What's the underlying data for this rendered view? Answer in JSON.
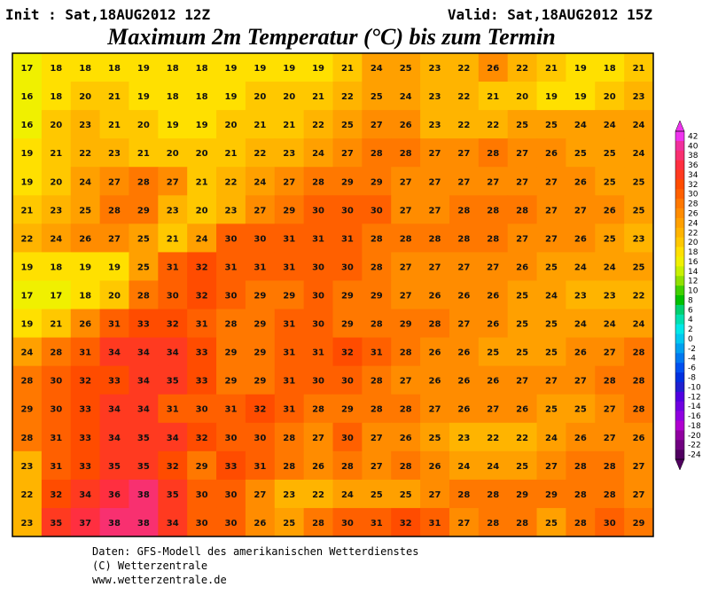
{
  "header": {
    "init": "Init : Sat,18AUG2012 12Z",
    "valid": "Valid: Sat,18AUG2012 15Z",
    "title": "Maximum 2m Temperatur (°C) bis zum Termin"
  },
  "map": {
    "grid": [
      [
        17,
        18,
        18,
        18,
        19,
        18,
        18,
        19,
        19,
        19,
        19,
        21,
        24,
        25,
        23,
        22,
        26,
        22,
        21,
        19,
        18,
        21
      ],
      [
        16,
        18,
        20,
        21,
        19,
        18,
        18,
        19,
        20,
        20,
        21,
        22,
        25,
        24,
        23,
        22,
        21,
        20,
        19,
        19,
        20,
        23
      ],
      [
        16,
        20,
        23,
        21,
        20,
        19,
        19,
        20,
        21,
        21,
        22,
        25,
        27,
        26,
        23,
        22,
        22,
        25,
        25,
        24,
        24,
        24
      ],
      [
        19,
        21,
        22,
        23,
        21,
        20,
        20,
        21,
        22,
        23,
        24,
        27,
        28,
        28,
        27,
        27,
        28,
        27,
        26,
        25,
        25,
        24
      ],
      [
        19,
        20,
        24,
        27,
        28,
        27,
        21,
        22,
        24,
        27,
        28,
        29,
        29,
        27,
        27,
        27,
        27,
        27,
        27,
        26,
        25,
        25
      ],
      [
        21,
        23,
        25,
        28,
        29,
        23,
        20,
        23,
        27,
        29,
        30,
        30,
        30,
        27,
        27,
        28,
        28,
        28,
        27,
        27,
        26,
        25
      ],
      [
        22,
        24,
        26,
        27,
        25,
        21,
        24,
        30,
        30,
        31,
        31,
        31,
        28,
        28,
        28,
        28,
        28,
        27,
        27,
        26,
        25,
        23
      ],
      [
        19,
        18,
        19,
        19,
        25,
        31,
        32,
        31,
        31,
        31,
        30,
        30,
        28,
        27,
        27,
        27,
        27,
        26,
        25,
        24,
        24,
        25
      ],
      [
        17,
        17,
        18,
        20,
        28,
        30,
        32,
        30,
        29,
        29,
        30,
        29,
        29,
        27,
        26,
        26,
        26,
        25,
        24,
        23,
        23,
        22
      ],
      [
        19,
        21,
        26,
        31,
        33,
        32,
        31,
        28,
        29,
        31,
        30,
        29,
        28,
        29,
        28,
        27,
        26,
        25,
        25,
        24,
        24,
        24
      ],
      [
        24,
        28,
        31,
        34,
        34,
        34,
        33,
        29,
        29,
        31,
        31,
        32,
        31,
        28,
        26,
        26,
        25,
        25,
        25,
        26,
        27,
        28
      ],
      [
        28,
        30,
        32,
        33,
        34,
        35,
        33,
        29,
        29,
        31,
        30,
        30,
        28,
        27,
        26,
        26,
        26,
        27,
        27,
        27,
        28,
        28
      ],
      [
        29,
        30,
        33,
        34,
        34,
        31,
        30,
        31,
        32,
        31,
        28,
        29,
        28,
        28,
        27,
        26,
        27,
        26,
        25,
        25,
        27,
        28
      ],
      [
        28,
        31,
        33,
        34,
        35,
        34,
        32,
        30,
        30,
        28,
        27,
        30,
        27,
        26,
        25,
        23,
        22,
        22,
        24,
        26,
        27,
        26
      ],
      [
        23,
        31,
        33,
        35,
        35,
        32,
        29,
        33,
        31,
        28,
        26,
        28,
        27,
        28,
        26,
        24,
        24,
        25,
        27,
        28,
        28,
        27
      ],
      [
        22,
        32,
        34,
        36,
        38,
        35,
        30,
        30,
        27,
        23,
        22,
        24,
        25,
        25,
        27,
        28,
        28,
        29,
        29,
        28,
        28,
        27
      ],
      [
        23,
        35,
        37,
        38,
        38,
        34,
        30,
        30,
        26,
        25,
        28,
        30,
        31,
        32,
        31,
        27,
        28,
        28,
        25,
        28,
        30,
        29
      ]
    ]
  },
  "colorbar": {
    "levels": [
      {
        "value": 42,
        "color": "#ee33ee"
      },
      {
        "value": 40,
        "color": "#f0309c"
      },
      {
        "value": 38,
        "color": "#f83070"
      },
      {
        "value": 36,
        "color": "#ff2f40"
      },
      {
        "value": 34,
        "color": "#ff3a20"
      },
      {
        "value": 32,
        "color": "#ff4c00"
      },
      {
        "value": 30,
        "color": "#ff6000"
      },
      {
        "value": 28,
        "color": "#ff7800"
      },
      {
        "value": 26,
        "color": "#ff8c00"
      },
      {
        "value": 24,
        "color": "#ffa000"
      },
      {
        "value": 22,
        "color": "#ffb400"
      },
      {
        "value": 20,
        "color": "#ffc800"
      },
      {
        "value": 18,
        "color": "#ffe000"
      },
      {
        "value": 16,
        "color": "#f0f000"
      },
      {
        "value": 14,
        "color": "#c8f000"
      },
      {
        "value": 12,
        "color": "#90e000"
      },
      {
        "value": 10,
        "color": "#40d000"
      },
      {
        "value": 8,
        "color": "#00c000"
      },
      {
        "value": 6,
        "color": "#00d070"
      },
      {
        "value": 4,
        "color": "#00e0b0"
      },
      {
        "value": 2,
        "color": "#00e8e8"
      },
      {
        "value": 0,
        "color": "#00c8f0"
      },
      {
        "value": -2,
        "color": "#00a0f0"
      },
      {
        "value": -4,
        "color": "#0078f0"
      },
      {
        "value": -6,
        "color": "#0050f0"
      },
      {
        "value": -8,
        "color": "#0030e0"
      },
      {
        "value": -10,
        "color": "#2020d0"
      },
      {
        "value": -12,
        "color": "#5000e0"
      },
      {
        "value": -14,
        "color": "#7000e0"
      },
      {
        "value": -16,
        "color": "#9000e0"
      },
      {
        "value": -18,
        "color": "#b000d0"
      },
      {
        "value": -20,
        "color": "#9000a0"
      },
      {
        "value": -22,
        "color": "#700080"
      },
      {
        "value": -24,
        "color": "#500060"
      }
    ]
  },
  "footer": {
    "lines": [
      "Daten: GFS-Modell des amerikanischen Wetterdienstes",
      "(C) Wetterzentrale",
      "www.wetterzentrale.de"
    ]
  }
}
